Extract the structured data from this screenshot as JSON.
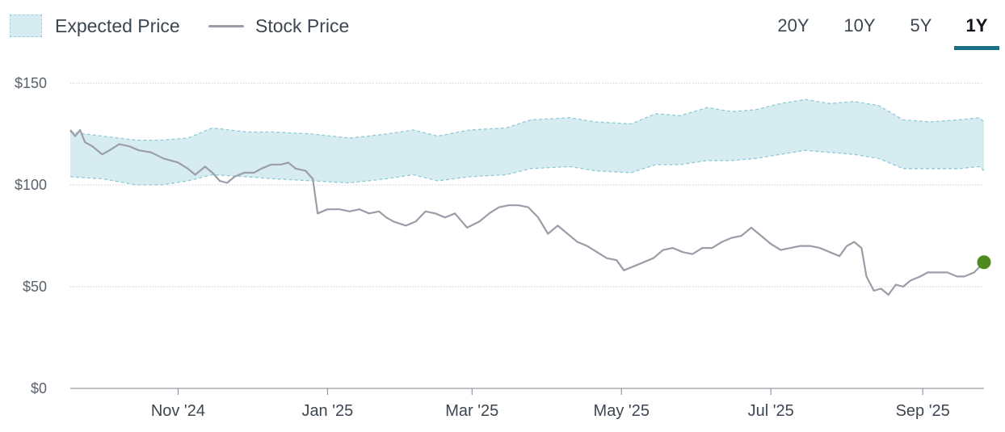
{
  "legend": {
    "expected_label": "Expected Price",
    "stock_label": "Stock Price"
  },
  "range_tabs": [
    {
      "label": "20Y",
      "active": false
    },
    {
      "label": "10Y",
      "active": false
    },
    {
      "label": "5Y",
      "active": false
    },
    {
      "label": "1Y",
      "active": true
    }
  ],
  "colors": {
    "band_fill": "#d6ecf1",
    "band_edge": "#8fcad6",
    "stock_line": "#9b9ea8",
    "last_point": "#4f8a1f",
    "grid": "#c9ccd1",
    "tab_accent": "#1a7086"
  },
  "chart_data": {
    "type": "area",
    "title": "",
    "xlabel": "",
    "ylabel": "",
    "ylim": [
      0,
      150
    ],
    "y_ticks": [
      {
        "value": 0,
        "label": "$0"
      },
      {
        "value": 50,
        "label": "$50"
      },
      {
        "value": 100,
        "label": "$100"
      },
      {
        "value": 150,
        "label": "$150"
      }
    ],
    "x_domain": [
      "2024-09-18",
      "2025-09-26"
    ],
    "x_ticks": [
      {
        "date": "2024-11-01",
        "label": "Nov '24"
      },
      {
        "date": "2025-01-01",
        "label": "Jan '25"
      },
      {
        "date": "2025-03-01",
        "label": "Mar '25"
      },
      {
        "date": "2025-05-01",
        "label": "May '25"
      },
      {
        "date": "2025-07-01",
        "label": "Jul '25"
      },
      {
        "date": "2025-09-01",
        "label": "Sep '25"
      }
    ],
    "grid": true,
    "legend_position": "top-left",
    "series": [
      {
        "name": "Expected Price",
        "kind": "band",
        "points": [
          [
            "2024-09-18",
            104,
            126
          ],
          [
            "2024-10-01",
            103,
            124
          ],
          [
            "2024-10-15",
            100,
            122
          ],
          [
            "2024-10-25",
            100,
            122
          ],
          [
            "2024-11-05",
            102,
            123
          ],
          [
            "2024-11-15",
            105,
            128
          ],
          [
            "2024-11-29",
            104,
            126
          ],
          [
            "2024-12-10",
            103,
            126
          ],
          [
            "2024-12-26",
            102,
            125
          ],
          [
            "2025-01-10",
            101,
            123
          ],
          [
            "2025-01-25",
            103,
            125
          ],
          [
            "2025-02-05",
            105,
            127
          ],
          [
            "2025-02-15",
            102,
            124
          ],
          [
            "2025-02-28",
            104,
            127
          ],
          [
            "2025-03-15",
            105,
            128
          ],
          [
            "2025-03-25",
            108,
            132
          ],
          [
            "2025-04-10",
            109,
            133
          ],
          [
            "2025-04-20",
            107,
            131
          ],
          [
            "2025-05-05",
            106,
            130
          ],
          [
            "2025-05-15",
            110,
            135
          ],
          [
            "2025-05-25",
            110,
            134
          ],
          [
            "2025-06-05",
            112,
            138
          ],
          [
            "2025-06-15",
            112,
            136
          ],
          [
            "2025-06-25",
            113,
            137
          ],
          [
            "2025-07-05",
            115,
            140
          ],
          [
            "2025-07-15",
            117,
            142
          ],
          [
            "2025-07-25",
            116,
            140
          ],
          [
            "2025-08-04",
            115,
            141
          ],
          [
            "2025-08-14",
            113,
            139
          ],
          [
            "2025-08-24",
            108,
            132
          ],
          [
            "2025-09-04",
            108,
            131
          ],
          [
            "2025-09-16",
            108,
            132
          ],
          [
            "2025-09-24",
            109,
            133
          ],
          [
            "2025-09-26",
            107,
            131
          ]
        ]
      },
      {
        "name": "Stock Price",
        "kind": "line",
        "points": [
          [
            "2024-09-18",
            127
          ],
          [
            "2024-09-20",
            124
          ],
          [
            "2024-09-22",
            127
          ],
          [
            "2024-09-24",
            121
          ],
          [
            "2024-09-27",
            119
          ],
          [
            "2024-10-01",
            115
          ],
          [
            "2024-10-04",
            117
          ],
          [
            "2024-10-08",
            120
          ],
          [
            "2024-10-12",
            119
          ],
          [
            "2024-10-16",
            117
          ],
          [
            "2024-10-21",
            116
          ],
          [
            "2024-10-26",
            113
          ],
          [
            "2024-11-01",
            111
          ],
          [
            "2024-11-05",
            108
          ],
          [
            "2024-11-08",
            105
          ],
          [
            "2024-11-12",
            109
          ],
          [
            "2024-11-15",
            106
          ],
          [
            "2024-11-18",
            102
          ],
          [
            "2024-11-21",
            101
          ],
          [
            "2024-11-24",
            104
          ],
          [
            "2024-11-28",
            106
          ],
          [
            "2024-12-02",
            106
          ],
          [
            "2024-12-05",
            108
          ],
          [
            "2024-12-09",
            110
          ],
          [
            "2024-12-13",
            110
          ],
          [
            "2024-12-16",
            111
          ],
          [
            "2024-12-19",
            108
          ],
          [
            "2024-12-23",
            107
          ],
          [
            "2024-12-26",
            103
          ],
          [
            "2024-12-28",
            86
          ],
          [
            "2025-01-01",
            88
          ],
          [
            "2025-01-06",
            88
          ],
          [
            "2025-01-10",
            87
          ],
          [
            "2025-01-14",
            88
          ],
          [
            "2025-01-18",
            86
          ],
          [
            "2025-01-22",
            87
          ],
          [
            "2025-01-25",
            84
          ],
          [
            "2025-01-28",
            82
          ],
          [
            "2025-02-02",
            80
          ],
          [
            "2025-02-06",
            82
          ],
          [
            "2025-02-10",
            87
          ],
          [
            "2025-02-14",
            86
          ],
          [
            "2025-02-18",
            84
          ],
          [
            "2025-02-22",
            86
          ],
          [
            "2025-02-27",
            79
          ],
          [
            "2025-03-04",
            82
          ],
          [
            "2025-03-08",
            86
          ],
          [
            "2025-03-12",
            89
          ],
          [
            "2025-03-16",
            90
          ],
          [
            "2025-03-20",
            90
          ],
          [
            "2025-03-24",
            89
          ],
          [
            "2025-03-28",
            84
          ],
          [
            "2025-04-01",
            76
          ],
          [
            "2025-04-05",
            80
          ],
          [
            "2025-04-09",
            76
          ],
          [
            "2025-04-13",
            72
          ],
          [
            "2025-04-17",
            70
          ],
          [
            "2025-04-21",
            67
          ],
          [
            "2025-04-25",
            64
          ],
          [
            "2025-04-29",
            63
          ],
          [
            "2025-05-02",
            58
          ],
          [
            "2025-05-06",
            60
          ],
          [
            "2025-05-10",
            62
          ],
          [
            "2025-05-14",
            64
          ],
          [
            "2025-05-18",
            68
          ],
          [
            "2025-05-22",
            69
          ],
          [
            "2025-05-26",
            67
          ],
          [
            "2025-05-30",
            66
          ],
          [
            "2025-06-03",
            69
          ],
          [
            "2025-06-07",
            69
          ],
          [
            "2025-06-11",
            72
          ],
          [
            "2025-06-15",
            74
          ],
          [
            "2025-06-19",
            75
          ],
          [
            "2025-06-23",
            79
          ],
          [
            "2025-06-27",
            75
          ],
          [
            "2025-07-01",
            71
          ],
          [
            "2025-07-05",
            68
          ],
          [
            "2025-07-09",
            69
          ],
          [
            "2025-07-13",
            70
          ],
          [
            "2025-07-17",
            70
          ],
          [
            "2025-07-21",
            69
          ],
          [
            "2025-07-25",
            67
          ],
          [
            "2025-07-29",
            65
          ],
          [
            "2025-08-01",
            70
          ],
          [
            "2025-08-04",
            72
          ],
          [
            "2025-08-07",
            69
          ],
          [
            "2025-08-09",
            55
          ],
          [
            "2025-08-12",
            48
          ],
          [
            "2025-08-15",
            49
          ],
          [
            "2025-08-18",
            46
          ],
          [
            "2025-08-21",
            51
          ],
          [
            "2025-08-24",
            50
          ],
          [
            "2025-08-27",
            53
          ],
          [
            "2025-08-31",
            55
          ],
          [
            "2025-09-03",
            57
          ],
          [
            "2025-09-07",
            57
          ],
          [
            "2025-09-11",
            57
          ],
          [
            "2025-09-15",
            55
          ],
          [
            "2025-09-18",
            55
          ],
          [
            "2025-09-22",
            57
          ],
          [
            "2025-09-26",
            62
          ]
        ]
      }
    ],
    "last_point": {
      "date": "2025-09-26",
      "value": 62
    }
  }
}
